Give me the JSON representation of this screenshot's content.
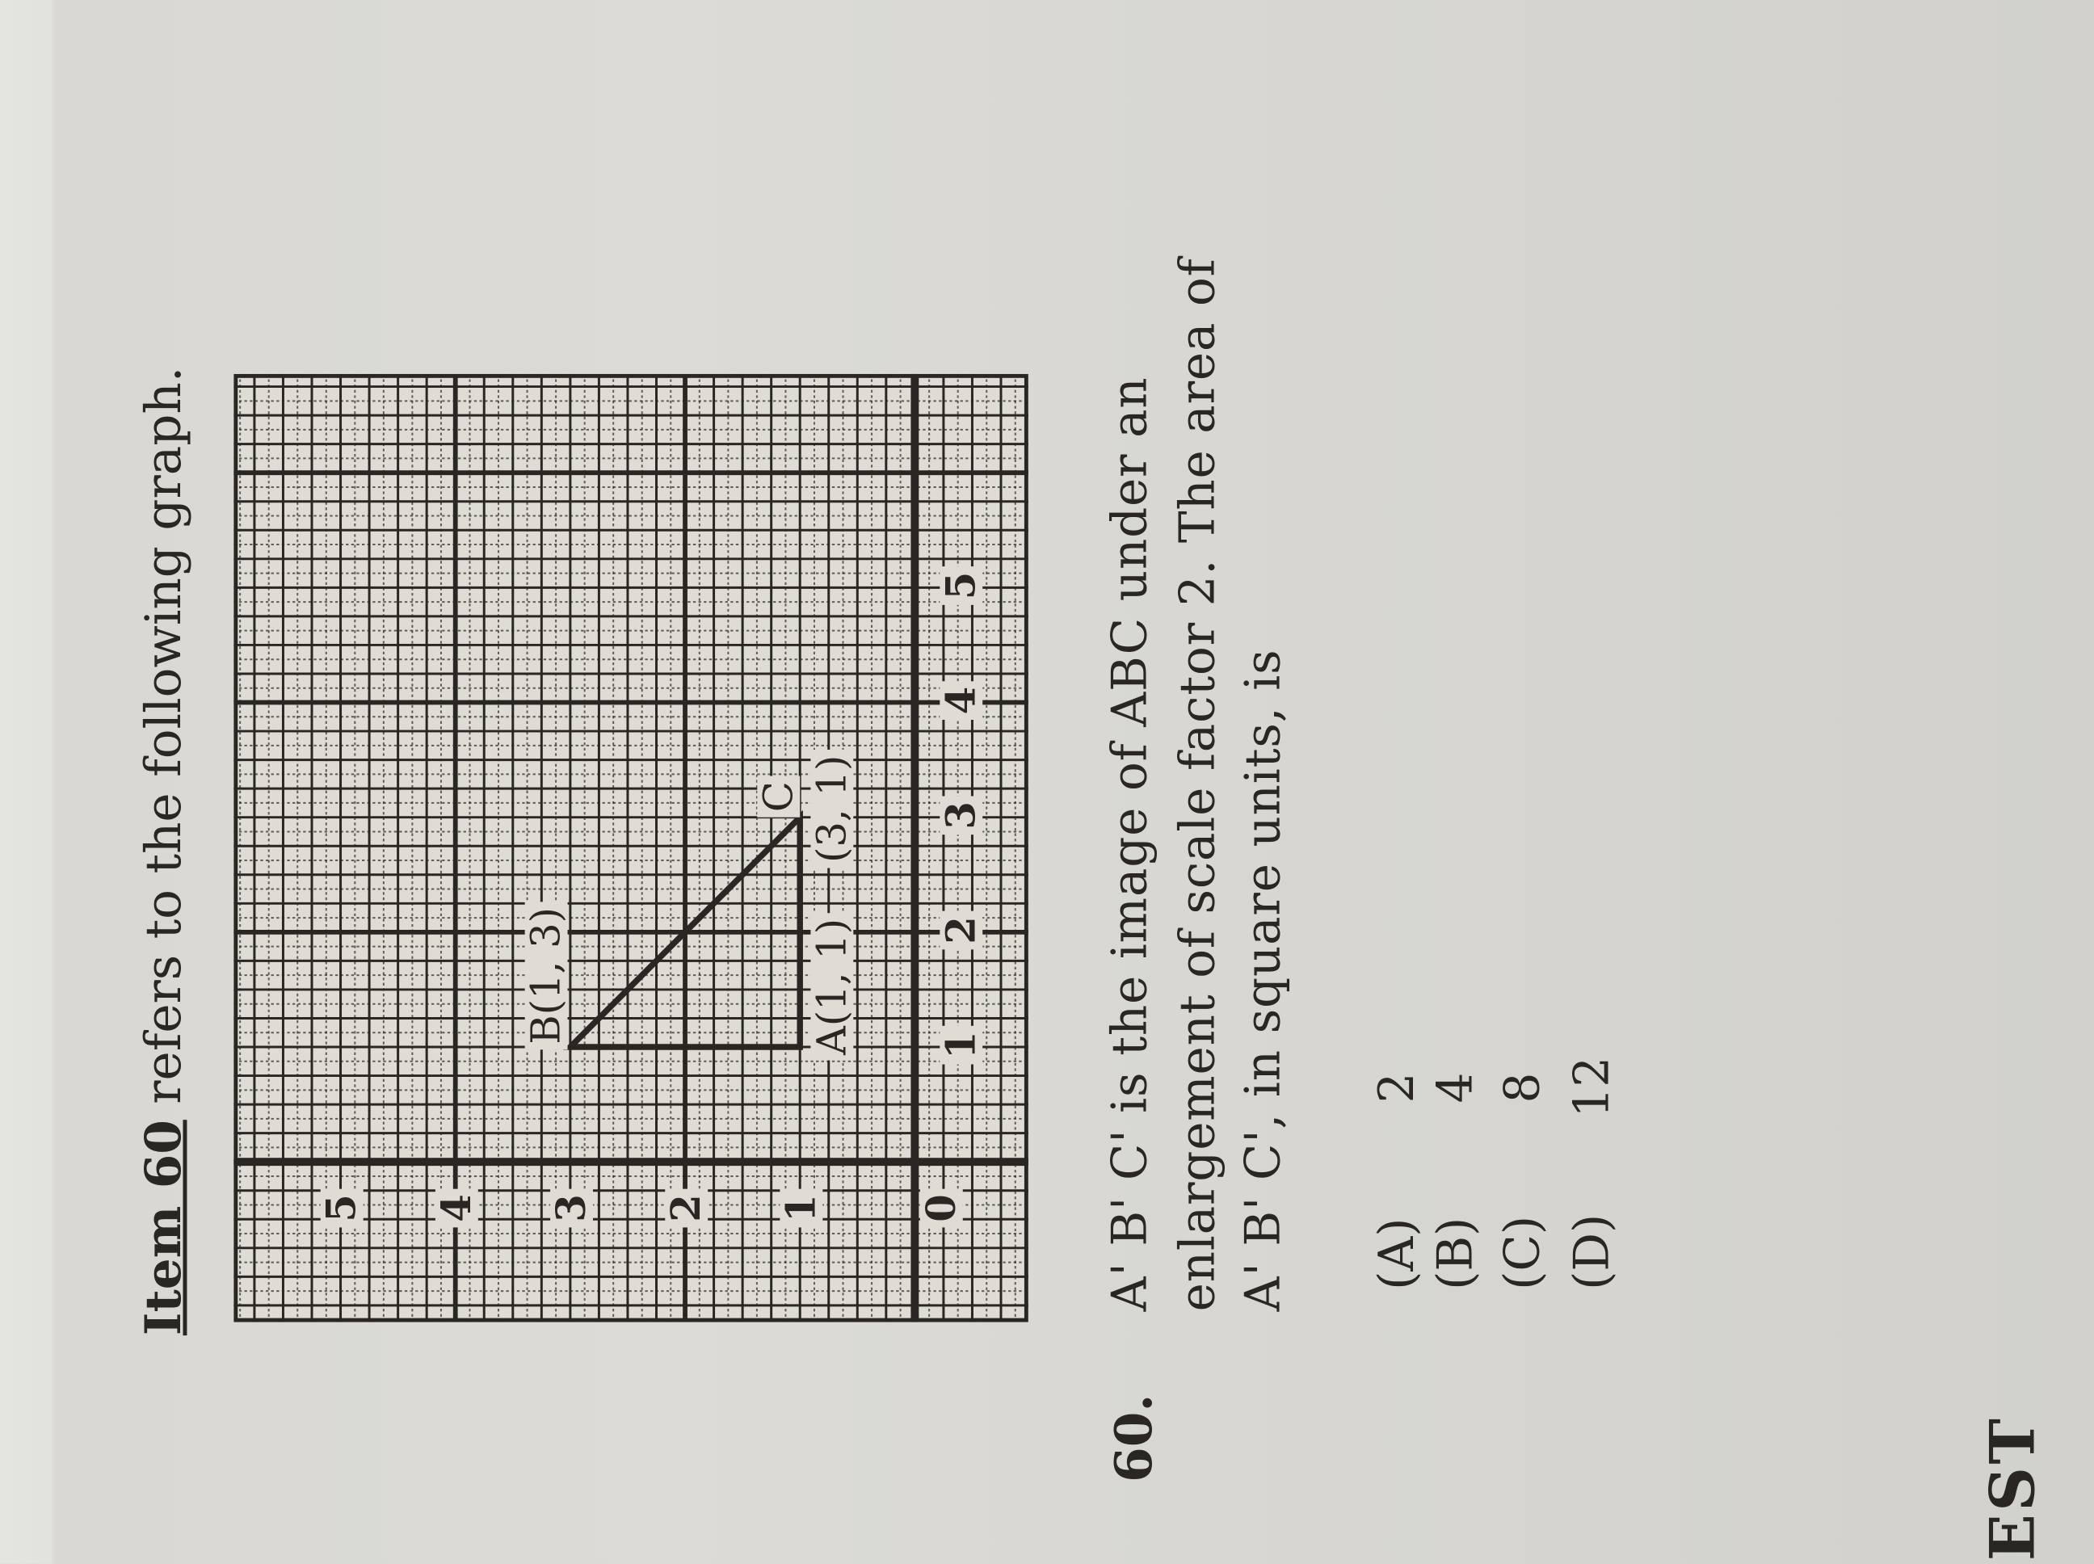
{
  "page": {
    "footer_text": "TEST"
  },
  "intro": {
    "item_ref": "Item 60",
    "rest": " refers to the following graph."
  },
  "graph": {
    "x_ticks": [
      "1",
      "2",
      "3",
      "4",
      "5"
    ],
    "y_ticks": [
      "0",
      "1",
      "2",
      "3",
      "4",
      "5"
    ],
    "points": [
      {
        "name": "A",
        "x": 1,
        "y": 1,
        "label": "A(1, 1)"
      },
      {
        "name": "B",
        "x": 1,
        "y": 3,
        "label": "B(1, 3)"
      },
      {
        "name": "C",
        "x": 3,
        "y": 1,
        "label": "C"
      }
    ],
    "c_coord_label": "(3, 1)",
    "ink_color": "#2a2623"
  },
  "question": {
    "number": "60.",
    "lines": [
      "A' B' C' is the image of ABC under an",
      "enlargement of scale factor 2.  The area of",
      "A' B' C', in square units, is"
    ],
    "options": [
      {
        "letter": "(A)",
        "value": "2"
      },
      {
        "letter": "(B)",
        "value": "4"
      },
      {
        "letter": "(C)",
        "value": "8"
      },
      {
        "letter": "(D)",
        "value": "12"
      }
    ]
  }
}
